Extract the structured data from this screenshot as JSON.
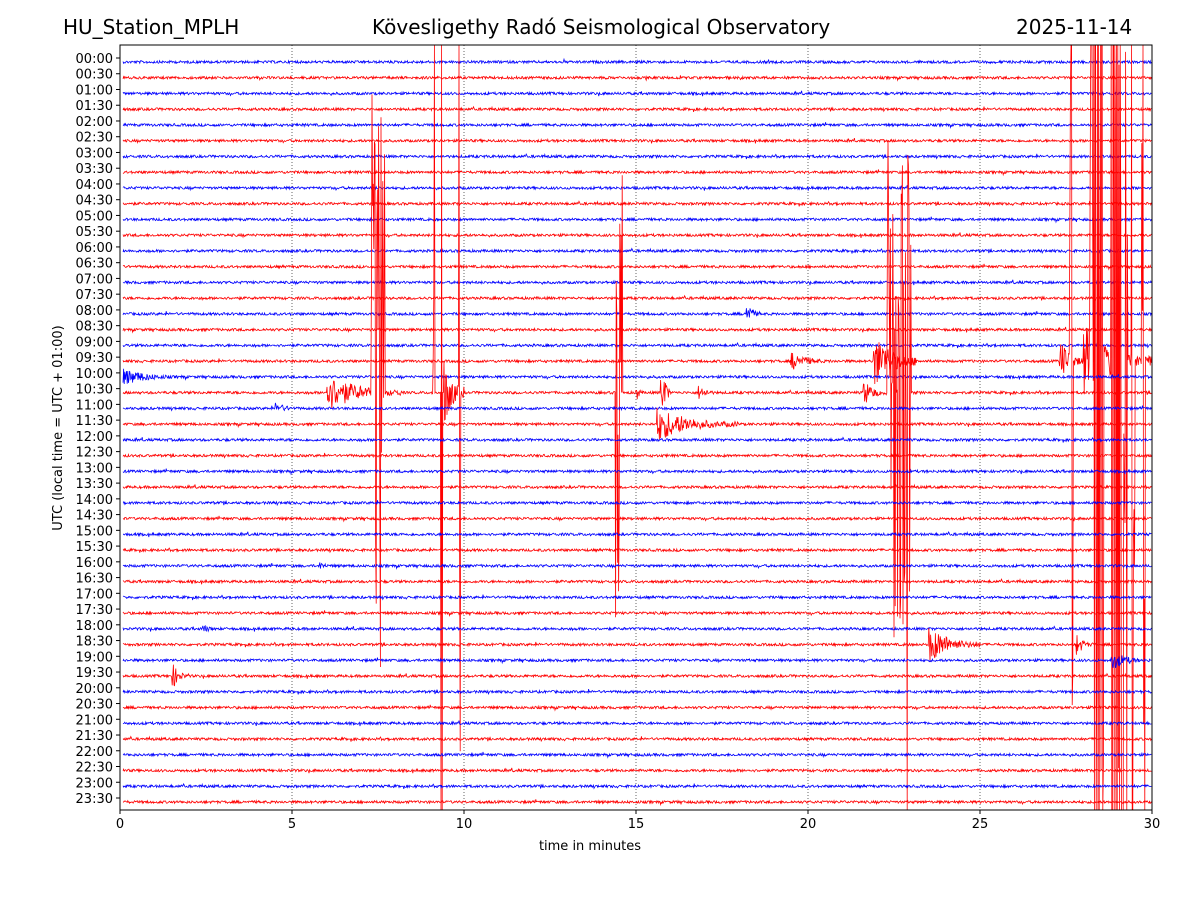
{
  "header": {
    "station": "HU_Station_MPLH",
    "observatory": "Kövesligethy Radó Seismological Observatory",
    "date": "2025-11-14"
  },
  "chart_data": {
    "type": "line",
    "subtype": "helicorder",
    "xlabel": "time in minutes",
    "ylabel": "UTC (local time = UTC + 01:00)",
    "xlim": [
      0,
      30
    ],
    "xticks": [
      "0",
      "5",
      "10",
      "15",
      "20",
      "25",
      "30"
    ],
    "grid": "vertical dotted at 5-minute ticks",
    "colors": [
      "#0000ff",
      "#ff0000"
    ],
    "rows": [
      "00:00",
      "00:30",
      "01:00",
      "01:30",
      "02:00",
      "02:30",
      "03:00",
      "03:30",
      "04:00",
      "04:30",
      "05:00",
      "05:30",
      "06:00",
      "06:30",
      "07:00",
      "07:30",
      "08:00",
      "08:30",
      "09:00",
      "09:30",
      "10:00",
      "10:30",
      "11:00",
      "11:30",
      "12:00",
      "12:30",
      "13:00",
      "13:30",
      "14:00",
      "14:30",
      "15:00",
      "15:30",
      "16:00",
      "16:30",
      "17:00",
      "17:30",
      "18:00",
      "18:30",
      "19:00",
      "19:30",
      "20:00",
      "20:30",
      "21:00",
      "21:30",
      "22:00",
      "22:30",
      "23:00",
      "23:30"
    ],
    "events": [
      {
        "row": 16,
        "start": 18.2,
        "end": 18.6,
        "amp": 15
      },
      {
        "row": 19,
        "start": 19.5,
        "end": 20.8,
        "amp": 10
      },
      {
        "row": 19,
        "start": 21.9,
        "end": 23.2,
        "amp": 30
      },
      {
        "row": 19,
        "start": 27.3,
        "end": 28.0,
        "amp": 25
      },
      {
        "row": 19,
        "start": 27.6,
        "end": 27.7,
        "amp": 900
      },
      {
        "row": 19,
        "start": 28.2,
        "end": 28.6,
        "amp": 900
      },
      {
        "row": 19,
        "start": 28.8,
        "end": 29.3,
        "amp": 900
      },
      {
        "row": 19,
        "start": 29.4,
        "end": 29.5,
        "amp": 900
      },
      {
        "row": 19,
        "start": 29.7,
        "end": 29.8,
        "amp": 900
      },
      {
        "row": 19,
        "start": 28.0,
        "end": 30.0,
        "amp": 40
      },
      {
        "row": 20,
        "start": 0.0,
        "end": 1.9,
        "amp": 10
      },
      {
        "row": 21,
        "start": 6.0,
        "end": 8.2,
        "amp": 20
      },
      {
        "row": 21,
        "start": 7.3,
        "end": 7.7,
        "amp": 300
      },
      {
        "row": 21,
        "start": 9.1,
        "end": 9.15,
        "amp": 900
      },
      {
        "row": 21,
        "start": 9.32,
        "end": 9.37,
        "amp": 900
      },
      {
        "row": 21,
        "start": 9.4,
        "end": 10.0,
        "amp": 40
      },
      {
        "row": 21,
        "start": 9.85,
        "end": 9.9,
        "amp": 500
      },
      {
        "row": 21,
        "start": 14.4,
        "end": 14.6,
        "amp": 240
      },
      {
        "row": 21,
        "start": 15.0,
        "end": 15.2,
        "amp": 12
      },
      {
        "row": 21,
        "start": 15.7,
        "end": 16.0,
        "amp": 40
      },
      {
        "row": 21,
        "start": 16.8,
        "end": 17.5,
        "amp": 8
      },
      {
        "row": 21,
        "start": 21.6,
        "end": 22.3,
        "amp": 15
      },
      {
        "row": 21,
        "start": 22.3,
        "end": 23.0,
        "amp": 260
      },
      {
        "row": 21,
        "start": 22.85,
        "end": 22.9,
        "amp": 900
      },
      {
        "row": 22,
        "start": 4.5,
        "end": 5.5,
        "amp": 6
      },
      {
        "row": 23,
        "start": 15.6,
        "end": 18.0,
        "amp": 18
      },
      {
        "row": 32,
        "start": 5.8,
        "end": 6.3,
        "amp": 5
      },
      {
        "row": 36,
        "start": 2.4,
        "end": 3.0,
        "amp": 5
      },
      {
        "row": 37,
        "start": 23.5,
        "end": 25.0,
        "amp": 20
      },
      {
        "row": 37,
        "start": 27.8,
        "end": 28.3,
        "amp": 12
      },
      {
        "row": 38,
        "start": 28.8,
        "end": 30.0,
        "amp": 10
      },
      {
        "row": 39,
        "start": 1.5,
        "end": 2.0,
        "amp": 15
      }
    ]
  }
}
